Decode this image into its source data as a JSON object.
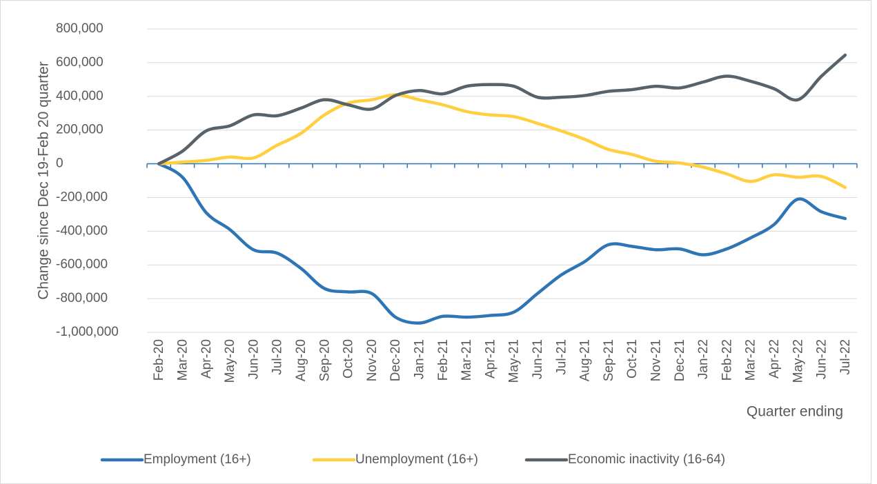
{
  "chart_data": {
    "type": "line",
    "y_label": "Change since Dec 19-Feb 20 quarter",
    "x_label": "Quarter ending",
    "categories": [
      "Feb-20",
      "Mar-20",
      "Apr-20",
      "May-20",
      "Jun-20",
      "Jul-20",
      "Aug-20",
      "Sep-20",
      "Oct-20",
      "Nov-20",
      "Dec-20",
      "Jan-21",
      "Feb-21",
      "Mar-21",
      "Apr-21",
      "May-21",
      "Jun-21",
      "Jul-21",
      "Aug-21",
      "Sep-21",
      "Oct-21",
      "Nov-21",
      "Dec-21",
      "Jan-22",
      "Feb-22",
      "Mar-22",
      "Apr-22",
      "May-22",
      "Jun-22",
      "Jul-22"
    ],
    "series": [
      {
        "name": "Employment (16+)",
        "color": "#2e75b6",
        "values": [
          0,
          -80000,
          -290000,
          -390000,
          -510000,
          -530000,
          -620000,
          -740000,
          -760000,
          -770000,
          -910000,
          -945000,
          -905000,
          -910000,
          -900000,
          -880000,
          -770000,
          -660000,
          -580000,
          -480000,
          -490000,
          -510000,
          -505000,
          -540000,
          -505000,
          -440000,
          -360000,
          -210000,
          -285000,
          -325000
        ]
      },
      {
        "name": "Unemployment (16+)",
        "color": "#ffcf40",
        "values": [
          0,
          10000,
          20000,
          40000,
          35000,
          110000,
          180000,
          290000,
          360000,
          380000,
          410000,
          380000,
          350000,
          310000,
          290000,
          280000,
          240000,
          195000,
          145000,
          85000,
          55000,
          15000,
          5000,
          -20000,
          -60000,
          -105000,
          -65000,
          -80000,
          -75000,
          -140000
        ]
      },
      {
        "name": "Economic inactivity (16-64)",
        "color": "#57626b",
        "values": [
          0,
          75000,
          195000,
          225000,
          290000,
          285000,
          330000,
          380000,
          350000,
          325000,
          405000,
          435000,
          415000,
          460000,
          470000,
          460000,
          395000,
          395000,
          405000,
          430000,
          440000,
          460000,
          450000,
          485000,
          520000,
          490000,
          445000,
          380000,
          520000,
          645000
        ]
      }
    ],
    "ylim": [
      -1000000,
      800000
    ],
    "yticks": [
      {
        "value": -1000000,
        "label": "-1,000,000"
      },
      {
        "value": -800000,
        "label": "-800,000"
      },
      {
        "value": -600000,
        "label": "-600,000"
      },
      {
        "value": -400000,
        "label": "-400,000"
      },
      {
        "value": -200000,
        "label": "-200,000"
      },
      0,
      {
        "value": 200000,
        "label": "200,000"
      },
      {
        "value": 400000,
        "label": "400,000"
      },
      {
        "value": 600000,
        "label": "600,000"
      },
      {
        "value": 800000,
        "label": "800,000"
      }
    ],
    "grid": true,
    "legend": "bottom"
  }
}
